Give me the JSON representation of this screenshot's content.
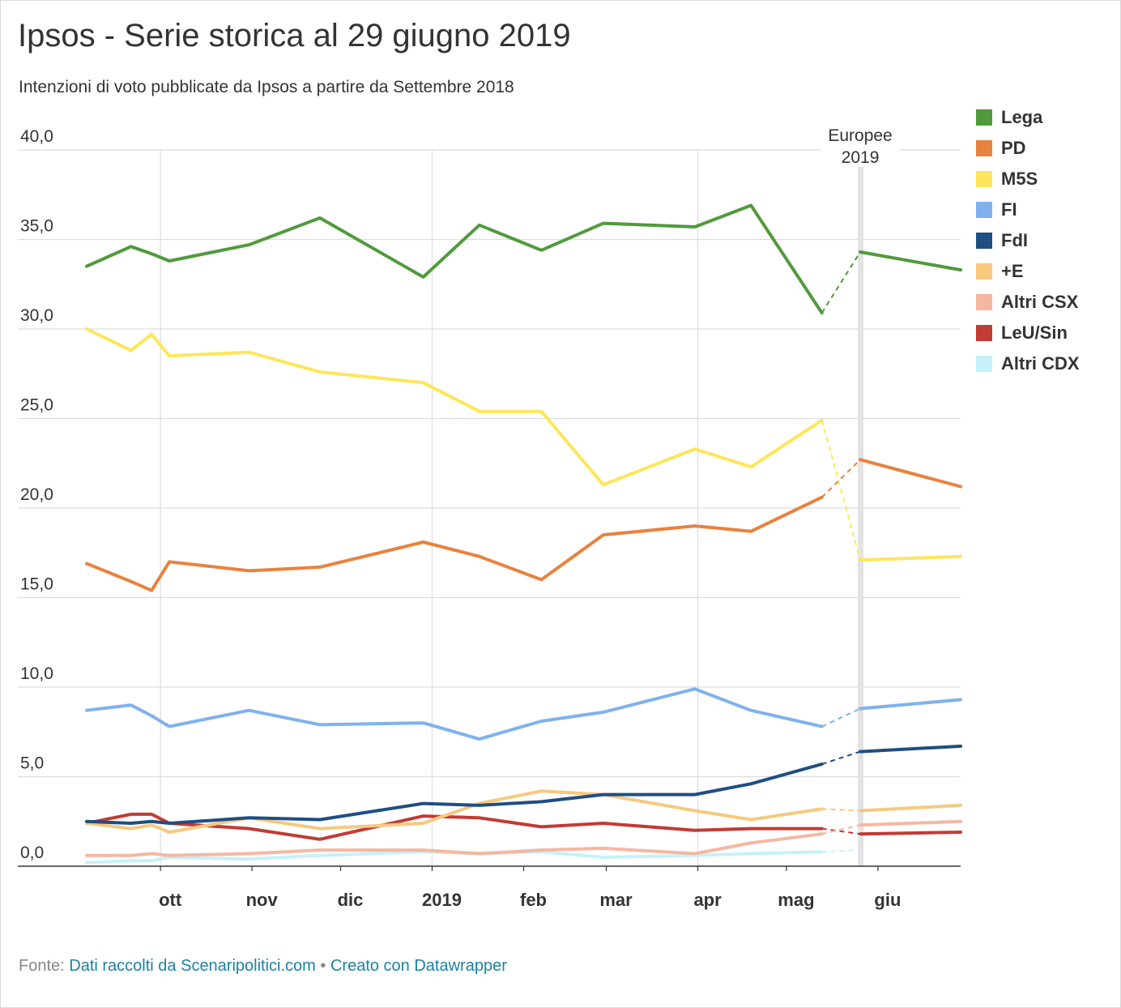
{
  "title": "Ipsos - Serie storica al 29 giugno 2019",
  "subtitle": "Intenzioni di voto pubblicate da Ipsos a partire da Settembre 2018",
  "footer": {
    "source_label": "Fonte:",
    "source_link": "Dati raccolti da Scenaripolitici.com",
    "separator": "•",
    "credit_link": "Creato con Datawrapper"
  },
  "chart_data": {
    "type": "line",
    "title": "Ipsos - Serie storica al 29 giugno 2019",
    "xlabel": "",
    "ylabel": "",
    "x_range": [
      "2018-09-06",
      "2019-06-29"
    ],
    "ylim": [
      0,
      40
    ],
    "y_ticks": [
      0,
      5,
      10,
      15,
      20,
      25,
      30,
      35,
      40
    ],
    "y_tick_labels": [
      "0,0",
      "5,0",
      "10,0",
      "15,0",
      "20,0",
      "25,0",
      "30,0",
      "35,0",
      "40,0"
    ],
    "x_ticks": [
      {
        "date": "2018-10-01",
        "label": "ott"
      },
      {
        "date": "2018-11-01",
        "label": "nov"
      },
      {
        "date": "2018-12-01",
        "label": "dic"
      },
      {
        "date": "2019-01-01",
        "label": "2019"
      },
      {
        "date": "2019-02-01",
        "label": "feb"
      },
      {
        "date": "2019-03-01",
        "label": "mar"
      },
      {
        "date": "2019-04-01",
        "label": "apr"
      },
      {
        "date": "2019-05-01",
        "label": "mag"
      },
      {
        "date": "2019-06-01",
        "label": "giu"
      }
    ],
    "gridlines": true,
    "legend_position": "right",
    "annotation": {
      "date": "2019-05-26",
      "label_line1": "Europee",
      "label_line2": "2019"
    },
    "gap_from": "2019-05-13",
    "gap_to": "2019-05-26",
    "x": [
      "2018-09-06",
      "2018-09-21",
      "2018-09-28",
      "2018-10-04",
      "2018-10-31",
      "2018-11-24",
      "2018-12-29",
      "2019-01-17",
      "2019-02-07",
      "2019-02-28",
      "2019-03-31",
      "2019-04-19",
      "2019-05-13",
      "2019-05-26",
      "2019-06-29"
    ],
    "series": [
      {
        "name": "Lega",
        "color": "#519a3c",
        "values": [
          33.5,
          34.6,
          34.2,
          33.8,
          34.7,
          36.2,
          32.9,
          35.8,
          34.4,
          35.9,
          35.7,
          36.9,
          30.9,
          34.3,
          33.3
        ]
      },
      {
        "name": "PD",
        "color": "#e8823e",
        "values": [
          16.9,
          15.9,
          15.4,
          17.0,
          16.5,
          16.7,
          18.1,
          17.3,
          16.0,
          18.5,
          19.0,
          18.7,
          20.6,
          22.7,
          21.2
        ]
      },
      {
        "name": "M5S",
        "color": "#fde659",
        "values": [
          30.0,
          28.8,
          29.7,
          28.5,
          28.7,
          27.6,
          27.0,
          25.4,
          25.4,
          21.3,
          23.3,
          22.3,
          24.9,
          17.1,
          17.3
        ]
      },
      {
        "name": "FI",
        "color": "#7fb2ed",
        "values": [
          8.7,
          9.0,
          8.4,
          7.8,
          8.7,
          7.9,
          8.0,
          7.1,
          8.1,
          8.6,
          9.9,
          8.7,
          7.8,
          8.8,
          9.3
        ]
      },
      {
        "name": "FdI",
        "color": "#1f4e83",
        "values": [
          2.5,
          2.4,
          2.5,
          2.4,
          2.7,
          2.6,
          3.5,
          3.4,
          3.6,
          4.0,
          4.0,
          4.6,
          5.7,
          6.4,
          6.7
        ]
      },
      {
        "name": "+E",
        "color": "#f6c97f",
        "values": [
          2.4,
          2.1,
          2.3,
          1.9,
          2.7,
          2.1,
          2.4,
          3.5,
          4.2,
          4.0,
          3.1,
          2.6,
          3.2,
          3.1,
          3.4
        ]
      },
      {
        "name": "Altri CSX",
        "color": "#f5b7a1",
        "values": [
          0.6,
          0.6,
          0.7,
          0.6,
          0.7,
          0.9,
          0.9,
          0.7,
          0.9,
          1.0,
          0.7,
          1.3,
          1.8,
          2.3,
          2.5
        ]
      },
      {
        "name": "LeU/Sin",
        "color": "#c23b35",
        "values": [
          2.4,
          2.9,
          2.9,
          2.4,
          2.1,
          1.5,
          2.8,
          2.7,
          2.2,
          2.4,
          2.0,
          2.1,
          2.1,
          1.8,
          1.9
        ]
      },
      {
        "name": "Altri CDX",
        "color": "#c6f1f9",
        "values": [
          0.2,
          0.3,
          0.3,
          0.5,
          0.4,
          0.6,
          0.8,
          0.7,
          0.8,
          0.5,
          0.6,
          0.7,
          0.8,
          0.9,
          null
        ]
      }
    ]
  }
}
